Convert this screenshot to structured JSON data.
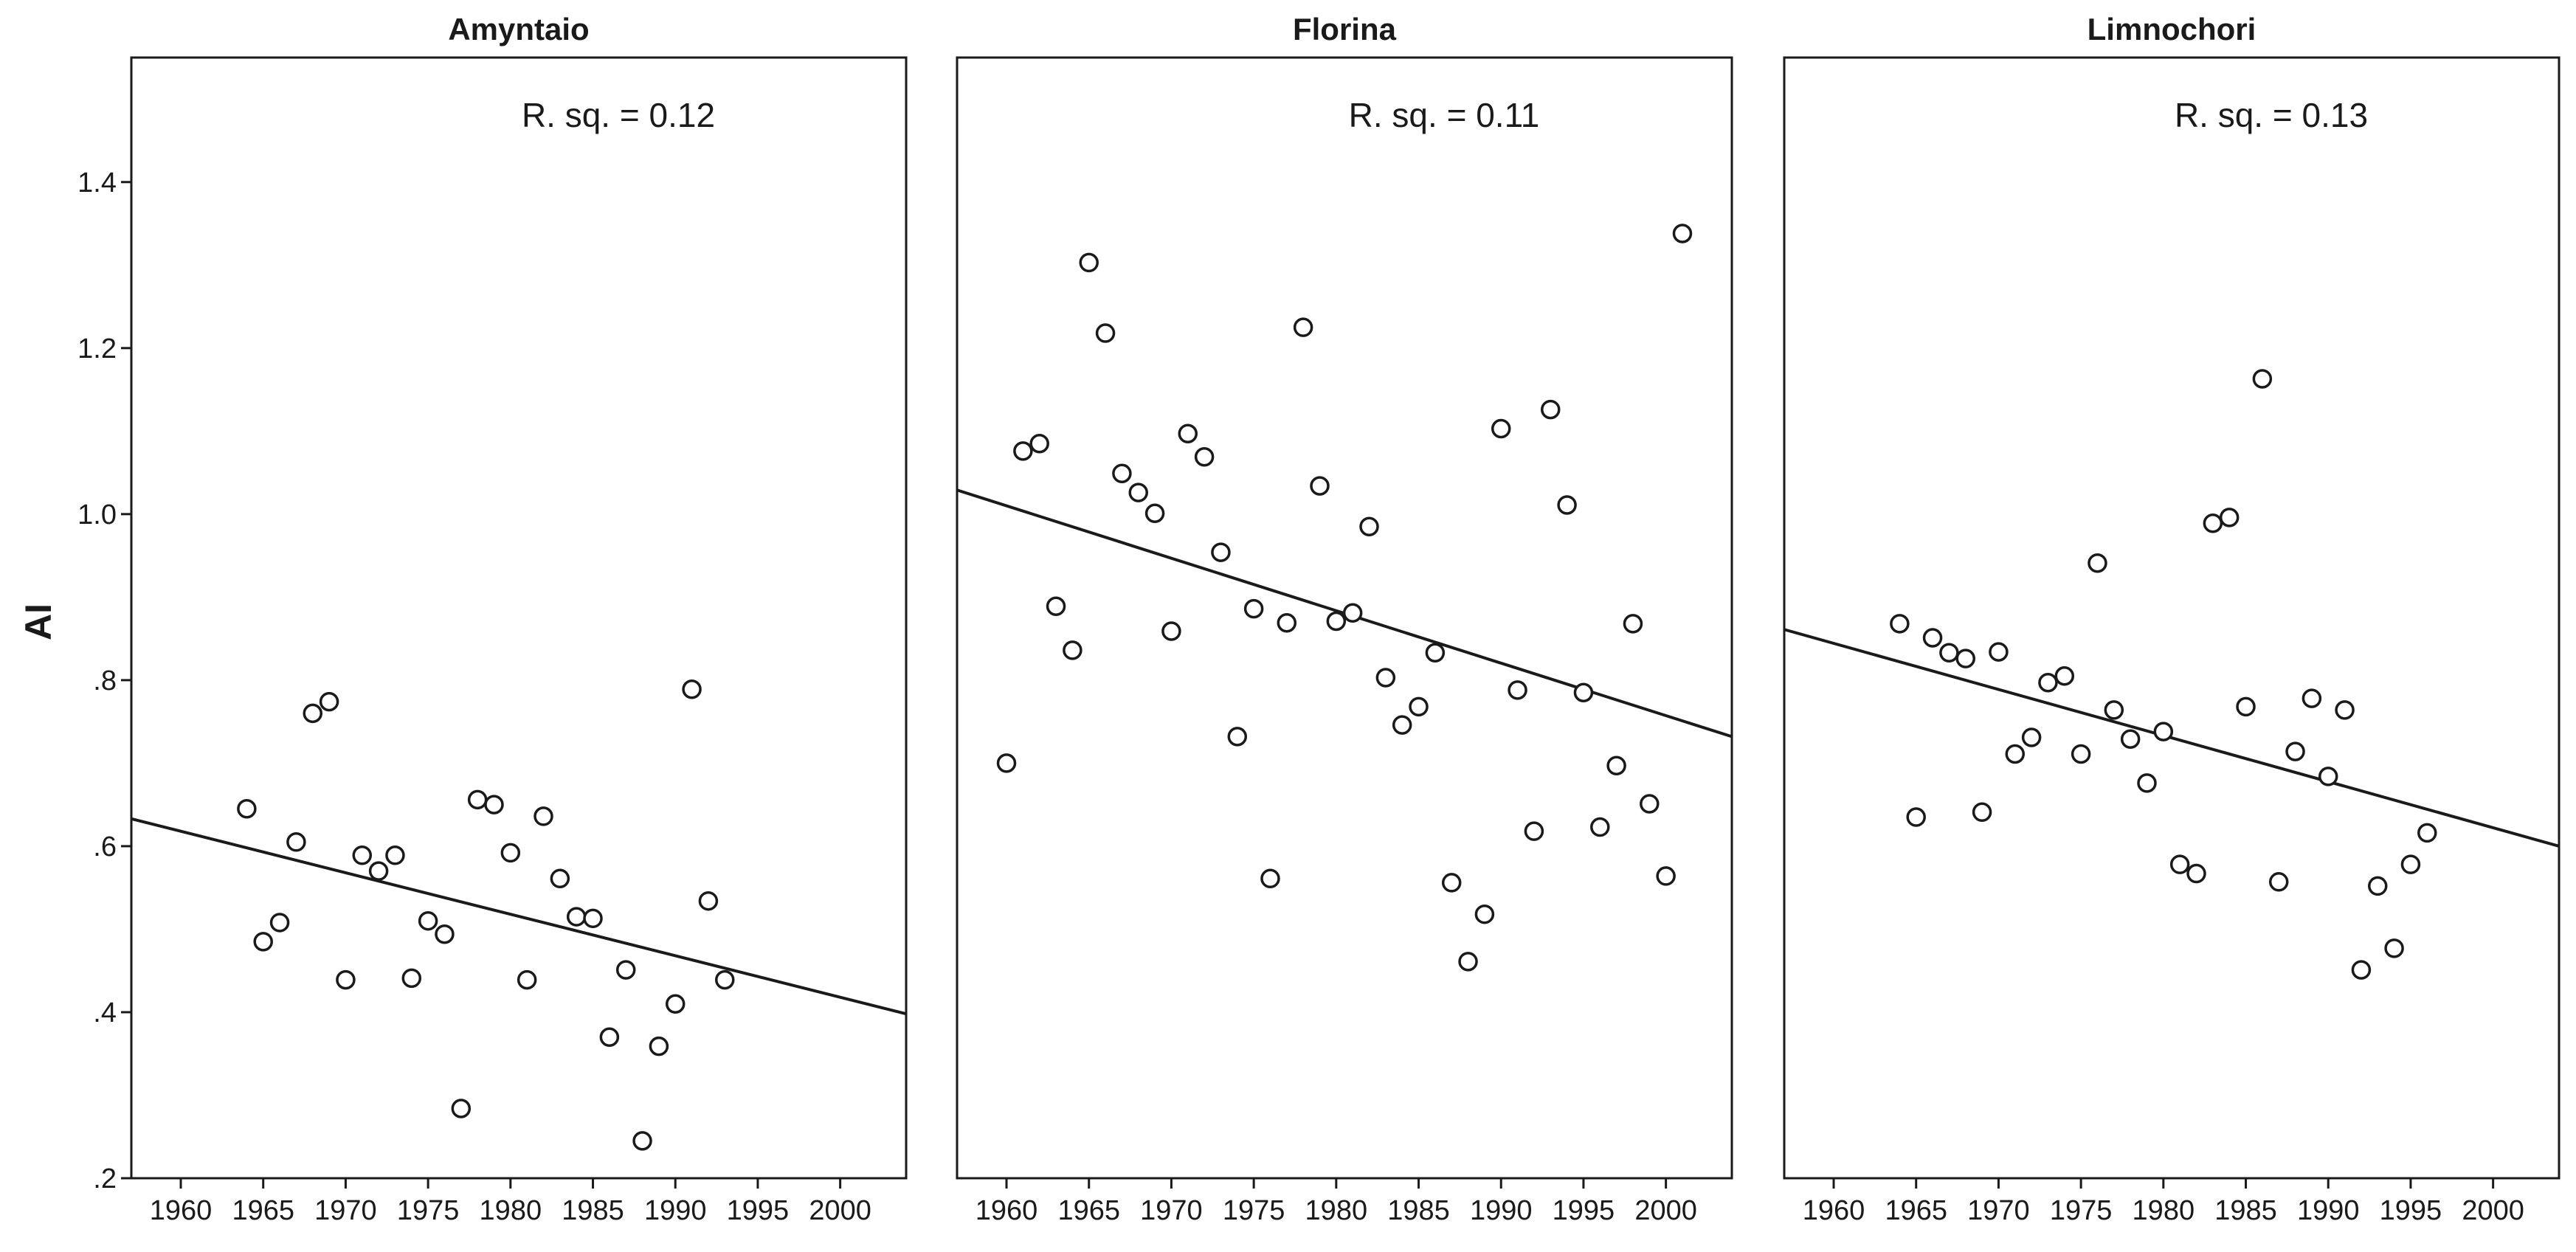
{
  "chart_data": {
    "type": "scatter",
    "ylabel": "AI",
    "ylim": [
      0.2,
      1.55
    ],
    "yticks": [
      0.2,
      0.4,
      0.6,
      0.8,
      1.0,
      1.2,
      1.4
    ],
    "ytick_labels": [
      ".2",
      ".4",
      ".6",
      ".8",
      "1.0",
      "1.2",
      "1.4"
    ],
    "xlim": [
      1957,
      2004
    ],
    "xticks": [
      1960,
      1965,
      1970,
      1975,
      1980,
      1985,
      1990,
      1995,
      2000
    ],
    "xtick_labels": [
      "1960",
      "1965",
      "1970",
      "1975",
      "1980",
      "1985",
      "1990",
      "1995",
      "2000"
    ],
    "panels": [
      {
        "title": "Amyntaio",
        "rsq_label": "R. sq. = 0.12",
        "fit": {
          "x": [
            1957,
            2004
          ],
          "y": [
            0.633,
            0.398
          ]
        },
        "points": {
          "x": [
            1964,
            1965,
            1966,
            1967,
            1968,
            1969,
            1970,
            1971,
            1972,
            1973,
            1974,
            1975,
            1976,
            1977,
            1978,
            1979,
            1980,
            1981,
            1982,
            1983,
            1984,
            1985,
            1986,
            1987,
            1988,
            1989,
            1990,
            1991,
            1992,
            1993
          ],
          "y": [
            0.645,
            0.485,
            0.508,
            0.605,
            0.76,
            0.774,
            0.439,
            0.589,
            0.57,
            0.589,
            0.441,
            0.51,
            0.494,
            0.284,
            0.656,
            0.65,
            0.592,
            0.439,
            0.636,
            0.561,
            0.515,
            0.513,
            0.37,
            0.451,
            0.245,
            0.359,
            0.41,
            0.789,
            0.534,
            0.439
          ]
        }
      },
      {
        "title": "Florina",
        "rsq_label": "R. sq. = 0.11",
        "fit": {
          "x": [
            1957,
            2004
          ],
          "y": [
            1.029,
            0.732
          ]
        },
        "points": {
          "x": [
            1960,
            1961,
            1962,
            1963,
            1964,
            1965,
            1966,
            1967,
            1968,
            1969,
            1970,
            1971,
            1972,
            1973,
            1974,
            1975,
            1976,
            1977,
            1978,
            1979,
            1980,
            1981,
            1982,
            1983,
            1984,
            1985,
            1986,
            1987,
            1988,
            1989,
            1990,
            1991,
            1992,
            1993,
            1994,
            1995,
            1996,
            1997,
            1998,
            1999,
            2000,
            2001
          ],
          "y": [
            0.7,
            1.076,
            1.085,
            0.889,
            0.836,
            1.303,
            1.218,
            1.049,
            1.026,
            1.001,
            0.859,
            1.097,
            1.069,
            0.954,
            0.732,
            0.886,
            0.561,
            0.869,
            1.225,
            1.034,
            0.871,
            0.881,
            0.985,
            0.803,
            0.746,
            0.768,
            0.833,
            0.556,
            0.461,
            0.518,
            1.103,
            0.788,
            0.618,
            1.126,
            1.011,
            0.785,
            0.623,
            0.697,
            0.868,
            0.651,
            0.564,
            1.338
          ]
        }
      },
      {
        "title": "Limnochori",
        "rsq_label": "R. sq. = 0.13",
        "fit": {
          "x": [
            1957,
            2004
          ],
          "y": [
            0.861,
            0.6
          ]
        },
        "points": {
          "x": [
            1964,
            1965,
            1966,
            1967,
            1968,
            1969,
            1970,
            1971,
            1972,
            1973,
            1974,
            1975,
            1976,
            1977,
            1978,
            1979,
            1980,
            1981,
            1982,
            1983,
            1984,
            1985,
            1986,
            1987,
            1988,
            1989,
            1990,
            1991,
            1992,
            1993,
            1994,
            1995,
            1996
          ],
          "y": [
            0.868,
            0.635,
            0.851,
            0.833,
            0.826,
            0.641,
            0.834,
            0.711,
            0.731,
            0.797,
            0.805,
            0.711,
            0.941,
            0.764,
            0.729,
            0.676,
            0.738,
            0.578,
            0.567,
            0.989,
            0.996,
            0.768,
            1.163,
            0.557,
            0.714,
            0.778,
            0.684,
            0.764,
            0.451,
            0.552,
            0.477,
            0.578,
            0.616
          ]
        }
      }
    ]
  }
}
